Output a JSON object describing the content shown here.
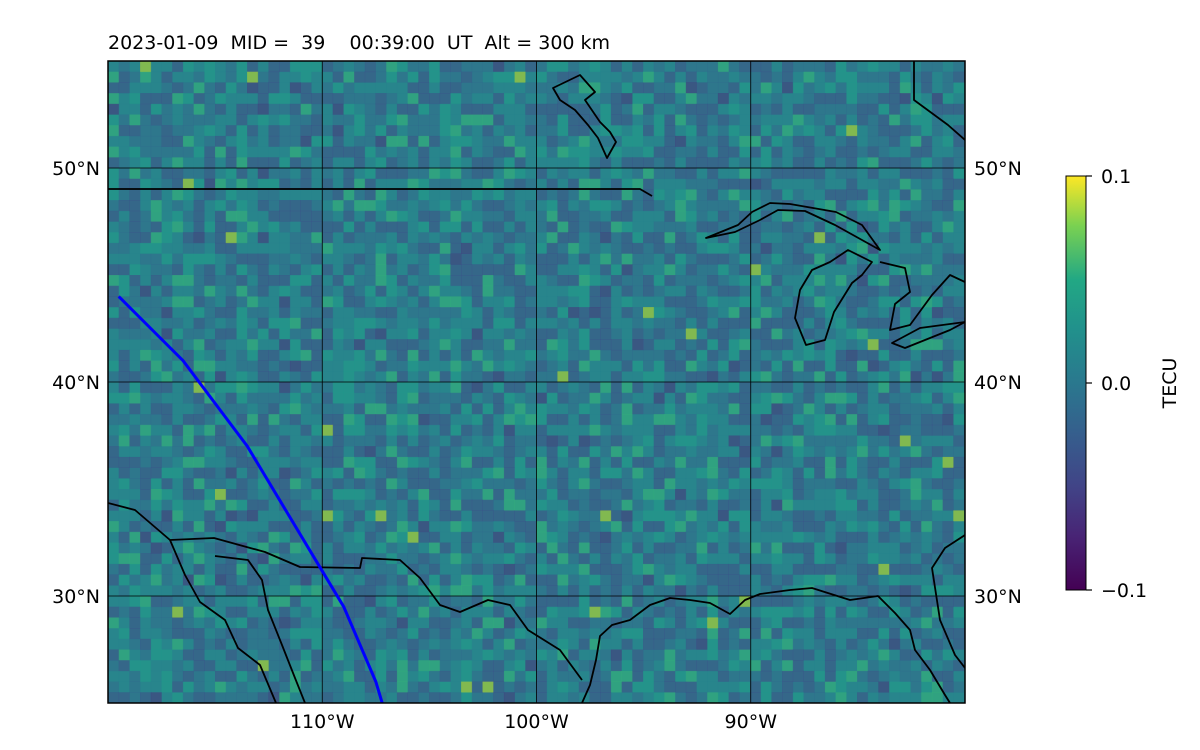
{
  "title": "2023-01-09  MID =  39    00:39:00  UT  Alt = 300 km",
  "map": {
    "lon_range": [
      -120,
      -80
    ],
    "lat_range": [
      25,
      55
    ],
    "lon_ticks": [
      {
        "value": -110,
        "label": "110°W"
      },
      {
        "value": -100,
        "label": "100°W"
      },
      {
        "value": -90,
        "label": "90°W"
      }
    ],
    "lat_ticks": [
      {
        "value": 50,
        "label": "50°N"
      },
      {
        "value": 40,
        "label": "40°N"
      },
      {
        "value": 30,
        "label": "30°N"
      }
    ],
    "gridlines": true,
    "background_color": "#2a8a8a",
    "coastline_color": "#000000",
    "track_color": "#0000ff",
    "track": [
      [
        -119.5,
        44
      ],
      [
        -118,
        42.5
      ],
      [
        -116.5,
        41
      ],
      [
        -115,
        39
      ],
      [
        -113.5,
        37
      ],
      [
        -112,
        34.5
      ],
      [
        -110.5,
        32
      ],
      [
        -109,
        29.5
      ],
      [
        -107.5,
        26
      ],
      [
        -107.2,
        25
      ]
    ]
  },
  "colorbar": {
    "label": "TECU",
    "min": -0.1,
    "max": 0.1,
    "ticks": [
      {
        "value": 0.1,
        "label": "0.1"
      },
      {
        "value": 0.0,
        "label": "0.0"
      },
      {
        "value": -0.1,
        "label": "−0.1"
      }
    ],
    "colormap": "viridis"
  }
}
